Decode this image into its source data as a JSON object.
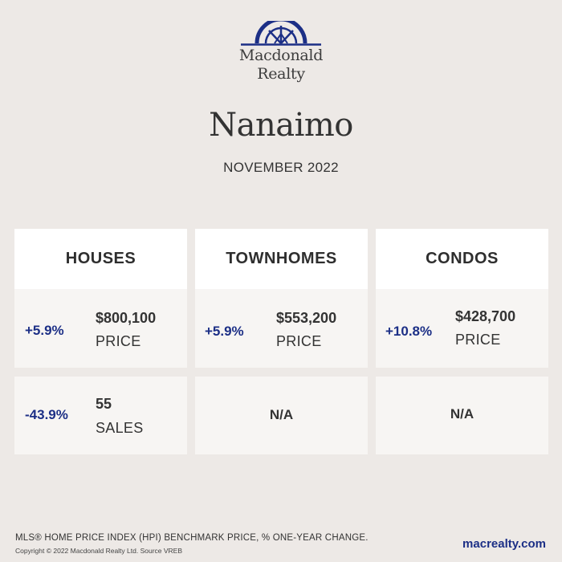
{
  "brand": {
    "name_line1": "Macdonald",
    "name_line2": "Realty",
    "logo_icon": "sunrise-arch-logo",
    "accent_color": "#1c2f86"
  },
  "report": {
    "city": "Nanaimo",
    "period": "NOVEMBER 2022"
  },
  "categories": [
    {
      "title": "HOUSES",
      "price": {
        "change": "+5.9%",
        "value": "$800,100",
        "label": "PRICE"
      },
      "sales": {
        "change": "-43.9%",
        "value": "55",
        "label": "SALES"
      }
    },
    {
      "title": "TOWNHOMES",
      "price": {
        "change": "+5.9%",
        "value": "$553,200",
        "label": "PRICE"
      },
      "sales": {
        "na": "N/A"
      }
    },
    {
      "title": "CONDOS",
      "price": {
        "change": "+10.8%",
        "value": "$428,700",
        "label": "PRICE"
      },
      "sales": {
        "na": "N/A"
      }
    }
  ],
  "footer": {
    "note": "MLS® HOME PRICE INDEX (HPI) BENCHMARK PRICE, % ONE-YEAR CHANGE.",
    "copyright": "Copyright © 2022 Macdonald Realty Ltd. Source VREB",
    "website": "macrealty.com"
  }
}
